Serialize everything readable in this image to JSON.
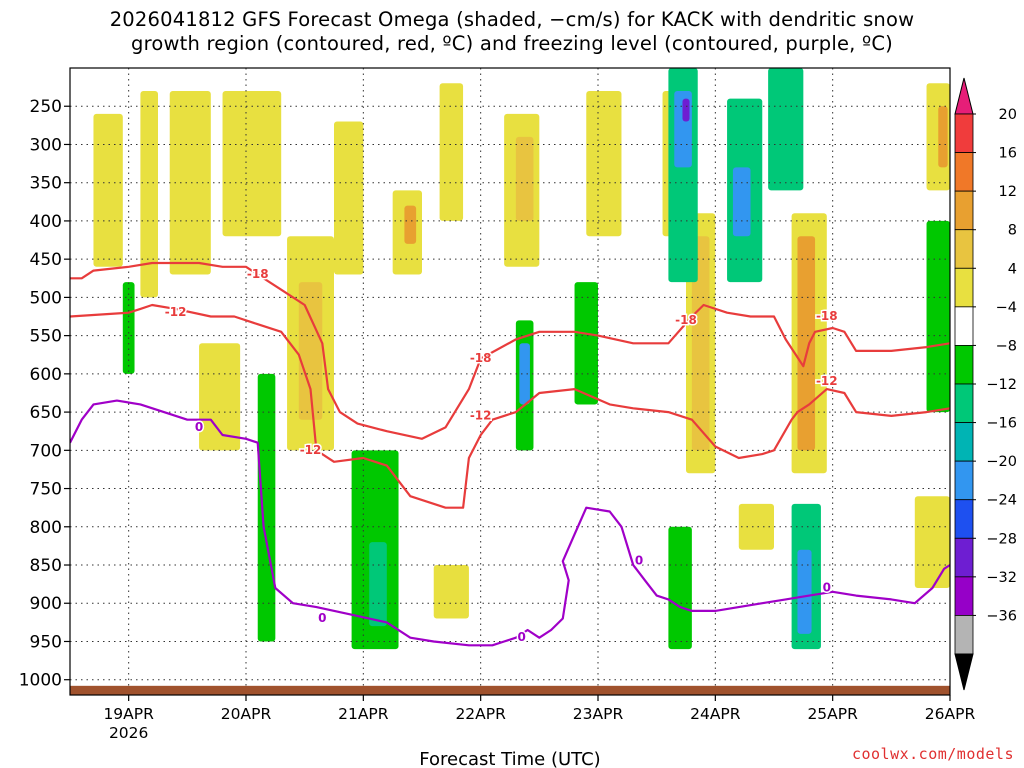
{
  "chart_data": {
    "type": "heatmap",
    "title_line1": "2026041812 GFS Forecast Omega (shaded, −cm/s) for KACK with dendritic snow",
    "title_line2": "growth region (contoured, red, ºC) and freezing level (contoured, purple, ºC)",
    "xlabel": "Forecast Time (UTC)",
    "ylabel": "",
    "x_ticks": [
      "19APR",
      "20APR",
      "21APR",
      "22APR",
      "23APR",
      "24APR",
      "25APR",
      "26APR"
    ],
    "x_year_label": "2026",
    "x_range_days": [
      18.5,
      26.0
    ],
    "y_ticks": [
      250,
      300,
      350,
      400,
      450,
      500,
      550,
      600,
      650,
      700,
      750,
      800,
      850,
      900,
      950,
      1000
    ],
    "y_range_hpa": [
      200,
      1020
    ],
    "colorbar_levels": [
      "20",
      "16",
      "12",
      "8",
      "4",
      "−4",
      "−8",
      "−12",
      "−16",
      "−20",
      "−24",
      "−28",
      "−32",
      "−36"
    ],
    "colorbar_colors": [
      "#e61e78",
      "#f03c3c",
      "#f07828",
      "#e8a030",
      "#e8c440",
      "#e8e040",
      "#ffffff",
      "#00c800",
      "#00c878",
      "#00b4b4",
      "#3296f0",
      "#1e50f0",
      "#6e1ed2",
      "#9600c8",
      "#b4b4b4",
      "#000000"
    ],
    "contours": [
      {
        "name": "-18",
        "color": "#e83c3c",
        "points": [
          [
            18.5,
            475
          ],
          [
            18.6,
            475
          ],
          [
            18.7,
            465
          ],
          [
            19.0,
            460
          ],
          [
            19.2,
            455
          ],
          [
            19.6,
            455
          ],
          [
            19.8,
            460
          ],
          [
            20.0,
            460
          ],
          [
            20.1,
            470
          ],
          [
            20.3,
            490
          ],
          [
            20.5,
            510
          ],
          [
            20.65,
            560
          ],
          [
            20.7,
            620
          ],
          [
            20.8,
            650
          ],
          [
            20.95,
            665
          ],
          [
            21.2,
            675
          ],
          [
            21.5,
            685
          ],
          [
            21.7,
            670
          ],
          [
            21.9,
            620
          ],
          [
            22.0,
            580
          ],
          [
            22.3,
            555
          ],
          [
            22.5,
            545
          ],
          [
            22.8,
            545
          ],
          [
            23.0,
            550
          ],
          [
            23.3,
            560
          ],
          [
            23.6,
            560
          ],
          [
            23.8,
            525
          ],
          [
            23.9,
            510
          ],
          [
            24.1,
            520
          ],
          [
            24.3,
            525
          ],
          [
            24.5,
            525
          ],
          [
            24.6,
            555
          ],
          [
            24.75,
            590
          ],
          [
            24.8,
            560
          ],
          [
            24.85,
            545
          ],
          [
            25.0,
            540
          ],
          [
            25.1,
            545
          ],
          [
            25.2,
            570
          ],
          [
            25.5,
            570
          ],
          [
            25.8,
            565
          ],
          [
            26.0,
            560
          ]
        ]
      },
      {
        "name": "-12",
        "color": "#e83c3c",
        "points": [
          [
            18.5,
            525
          ],
          [
            19.0,
            520
          ],
          [
            19.1,
            515
          ],
          [
            19.2,
            510
          ],
          [
            19.4,
            515
          ],
          [
            19.7,
            525
          ],
          [
            19.9,
            525
          ],
          [
            20.1,
            535
          ],
          [
            20.3,
            545
          ],
          [
            20.45,
            575
          ],
          [
            20.55,
            620
          ],
          [
            20.6,
            700
          ],
          [
            20.75,
            715
          ],
          [
            21.0,
            710
          ],
          [
            21.2,
            720
          ],
          [
            21.4,
            760
          ],
          [
            21.7,
            775
          ],
          [
            21.85,
            775
          ],
          [
            21.9,
            710
          ],
          [
            22.0,
            680
          ],
          [
            22.1,
            660
          ],
          [
            22.3,
            650
          ],
          [
            22.5,
            625
          ],
          [
            22.8,
            620
          ],
          [
            23.1,
            640
          ],
          [
            23.3,
            645
          ],
          [
            23.6,
            650
          ],
          [
            23.8,
            660
          ],
          [
            24.0,
            695
          ],
          [
            24.2,
            710
          ],
          [
            24.4,
            705
          ],
          [
            24.5,
            700
          ],
          [
            24.65,
            660
          ],
          [
            24.7,
            650
          ],
          [
            24.8,
            640
          ],
          [
            24.95,
            620
          ],
          [
            25.1,
            625
          ],
          [
            25.2,
            650
          ],
          [
            25.5,
            655
          ],
          [
            25.8,
            650
          ],
          [
            26.0,
            645
          ]
        ]
      },
      {
        "name": "0",
        "color": "#a000c8",
        "points": [
          [
            18.5,
            690
          ],
          [
            18.6,
            660
          ],
          [
            18.7,
            640
          ],
          [
            18.9,
            635
          ],
          [
            19.1,
            640
          ],
          [
            19.3,
            650
          ],
          [
            19.5,
            660
          ],
          [
            19.7,
            660
          ],
          [
            19.8,
            680
          ],
          [
            20.0,
            685
          ],
          [
            20.1,
            690
          ],
          [
            20.15,
            800
          ],
          [
            20.25,
            880
          ],
          [
            20.4,
            900
          ],
          [
            20.6,
            905
          ],
          [
            20.9,
            915
          ],
          [
            21.2,
            925
          ],
          [
            21.4,
            945
          ],
          [
            21.6,
            950
          ],
          [
            21.9,
            955
          ],
          [
            22.1,
            955
          ],
          [
            22.2,
            950
          ],
          [
            22.3,
            945
          ],
          [
            22.4,
            935
          ],
          [
            22.5,
            945
          ],
          [
            22.6,
            935
          ],
          [
            22.7,
            920
          ],
          [
            22.75,
            870
          ],
          [
            22.7,
            845
          ],
          [
            22.8,
            810
          ],
          [
            22.9,
            775
          ],
          [
            23.1,
            780
          ],
          [
            23.2,
            800
          ],
          [
            23.3,
            850
          ],
          [
            23.4,
            870
          ],
          [
            23.5,
            890
          ],
          [
            23.6,
            895
          ],
          [
            23.7,
            905
          ],
          [
            23.8,
            910
          ],
          [
            24.0,
            910
          ],
          [
            24.2,
            905
          ],
          [
            24.4,
            900
          ],
          [
            24.6,
            895
          ],
          [
            24.8,
            890
          ],
          [
            25.0,
            885
          ],
          [
            25.2,
            890
          ],
          [
            25.5,
            895
          ],
          [
            25.7,
            900
          ],
          [
            25.85,
            880
          ],
          [
            25.95,
            855
          ],
          [
            26.0,
            850
          ]
        ]
      }
    ],
    "contour_labels": [
      {
        "text": "-18",
        "x": 20.1,
        "p": 470,
        "color": "#e83c3c"
      },
      {
        "text": "-12",
        "x": 19.4,
        "p": 520,
        "color": "#e83c3c"
      },
      {
        "text": "-12",
        "x": 20.55,
        "p": 700,
        "color": "#e83c3c"
      },
      {
        "text": "-18",
        "x": 22.0,
        "p": 580,
        "color": "#e83c3c"
      },
      {
        "text": "-12",
        "x": 22.0,
        "p": 655,
        "color": "#e83c3c"
      },
      {
        "text": "-18",
        "x": 23.75,
        "p": 530,
        "color": "#e83c3c"
      },
      {
        "text": "-18",
        "x": 24.95,
        "p": 525,
        "color": "#e83c3c"
      },
      {
        "text": "-12",
        "x": 24.95,
        "p": 610,
        "color": "#e83c3c"
      },
      {
        "text": "0",
        "x": 19.6,
        "p": 670,
        "color": "#a000c8"
      },
      {
        "text": "0",
        "x": 20.65,
        "p": 920,
        "color": "#a000c8"
      },
      {
        "text": "0",
        "x": 22.35,
        "p": 945,
        "color": "#a000c8"
      },
      {
        "text": "0",
        "x": 23.35,
        "p": 845,
        "color": "#a000c8"
      },
      {
        "text": "0",
        "x": 24.95,
        "p": 880,
        "color": "#a000c8"
      }
    ],
    "omega_cells": [
      {
        "x0": 18.7,
        "x1": 18.95,
        "p0": 260,
        "p1": 460,
        "level": 4
      },
      {
        "x0": 19.1,
        "x1": 19.25,
        "p0": 230,
        "p1": 500,
        "level": 4
      },
      {
        "x0": 19.35,
        "x1": 19.7,
        "p0": 230,
        "p1": 470,
        "level": 4
      },
      {
        "x0": 19.8,
        "x1": 20.3,
        "p0": 230,
        "p1": 420,
        "level": 4
      },
      {
        "x0": 20.35,
        "x1": 20.75,
        "p0": 420,
        "p1": 700,
        "level": 4
      },
      {
        "x0": 20.45,
        "x1": 20.65,
        "p0": 480,
        "p1": 660,
        "level": 8
      },
      {
        "x0": 20.75,
        "x1": 21.0,
        "p0": 270,
        "p1": 470,
        "level": 4
      },
      {
        "x0": 21.25,
        "x1": 21.5,
        "p0": 360,
        "p1": 470,
        "level": 4
      },
      {
        "x0": 21.35,
        "x1": 21.45,
        "p0": 380,
        "p1": 430,
        "level": 12
      },
      {
        "x0": 21.65,
        "x1": 21.85,
        "p0": 220,
        "p1": 400,
        "level": 4
      },
      {
        "x0": 22.2,
        "x1": 22.5,
        "p0": 260,
        "p1": 460,
        "level": 4
      },
      {
        "x0": 22.3,
        "x1": 22.45,
        "p0": 290,
        "p1": 400,
        "level": 8
      },
      {
        "x0": 22.9,
        "x1": 23.2,
        "p0": 230,
        "p1": 420,
        "level": 4
      },
      {
        "x0": 23.55,
        "x1": 23.75,
        "p0": 230,
        "p1": 420,
        "level": 4
      },
      {
        "x0": 23.75,
        "x1": 24.0,
        "p0": 390,
        "p1": 730,
        "level": 4
      },
      {
        "x0": 23.8,
        "x1": 23.95,
        "p0": 420,
        "p1": 700,
        "level": 8
      },
      {
        "x0": 24.65,
        "x1": 24.95,
        "p0": 390,
        "p1": 730,
        "level": 4
      },
      {
        "x0": 24.7,
        "x1": 24.85,
        "p0": 420,
        "p1": 700,
        "level": 12
      },
      {
        "x0": 25.8,
        "x1": 26.0,
        "p0": 220,
        "p1": 360,
        "level": 4
      },
      {
        "x0": 25.9,
        "x1": 25.98,
        "p0": 250,
        "p1": 330,
        "level": 12
      },
      {
        "x0": 25.7,
        "x1": 26.0,
        "p0": 760,
        "p1": 880,
        "level": 4
      },
      {
        "x0": 19.6,
        "x1": 19.95,
        "p0": 560,
        "p1": 700,
        "level": 4
      },
      {
        "x0": 21.6,
        "x1": 21.9,
        "p0": 850,
        "p1": 920,
        "level": 4
      },
      {
        "x0": 24.2,
        "x1": 24.5,
        "p0": 770,
        "p1": 830,
        "level": 4
      },
      {
        "x0": 20.1,
        "x1": 20.25,
        "p0": 600,
        "p1": 950,
        "level": -8
      },
      {
        "x0": 20.9,
        "x1": 21.3,
        "p0": 700,
        "p1": 960,
        "level": -8
      },
      {
        "x0": 21.05,
        "x1": 21.2,
        "p0": 820,
        "p1": 930,
        "level": -12
      },
      {
        "x0": 22.3,
        "x1": 22.45,
        "p0": 530,
        "p1": 700,
        "level": -8
      },
      {
        "x0": 22.33,
        "x1": 22.42,
        "p0": 560,
        "p1": 640,
        "level": -16
      },
      {
        "x0": 22.8,
        "x1": 23.0,
        "p0": 480,
        "p1": 640,
        "level": -8
      },
      {
        "x0": 23.6,
        "x1": 23.85,
        "p0": 200,
        "p1": 480,
        "level": -12
      },
      {
        "x0": 23.65,
        "x1": 23.8,
        "p0": 230,
        "p1": 330,
        "level": -16
      },
      {
        "x0": 23.72,
        "x1": 23.78,
        "p0": 240,
        "p1": 270,
        "level": -24
      },
      {
        "x0": 24.1,
        "x1": 24.4,
        "p0": 240,
        "p1": 480,
        "level": -12
      },
      {
        "x0": 24.15,
        "x1": 24.3,
        "p0": 330,
        "p1": 420,
        "level": -16
      },
      {
        "x0": 24.45,
        "x1": 24.75,
        "p0": 200,
        "p1": 360,
        "level": -12
      },
      {
        "x0": 23.6,
        "x1": 23.8,
        "p0": 800,
        "p1": 960,
        "level": -8
      },
      {
        "x0": 24.65,
        "x1": 24.9,
        "p0": 770,
        "p1": 960,
        "level": -12
      },
      {
        "x0": 24.7,
        "x1": 24.82,
        "p0": 830,
        "p1": 940,
        "level": -16
      },
      {
        "x0": 25.8,
        "x1": 26.0,
        "p0": 400,
        "p1": 650,
        "level": -8
      },
      {
        "x0": 18.95,
        "x1": 19.05,
        "p0": 480,
        "p1": 600,
        "level": -8
      }
    ]
  },
  "credit": "coolwx.com/models"
}
